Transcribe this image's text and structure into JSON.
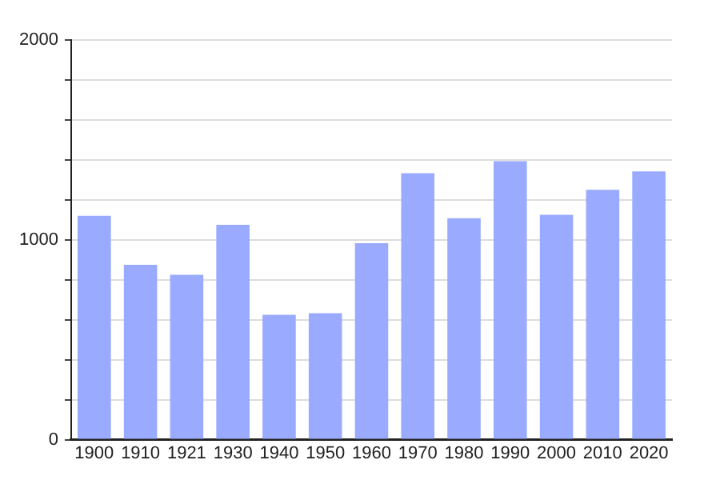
{
  "chart_data": {
    "type": "bar",
    "categories": [
      "1900",
      "1910",
      "1921",
      "1930",
      "1940",
      "1950",
      "1960",
      "1970",
      "1980",
      "1990",
      "2000",
      "2010",
      "2020"
    ],
    "values": [
      1120,
      875,
      825,
      1075,
      625,
      633,
      983,
      1333,
      1108,
      1394,
      1125,
      1250,
      1342
    ],
    "color": "#99aaff",
    "ylim": [
      0,
      2000
    ],
    "yticks": [
      0,
      {
        "value": 200,
        "label": null
      },
      {
        "value": 400,
        "label": null
      },
      {
        "value": 600,
        "label": null
      },
      {
        "value": 800,
        "label": null
      },
      1000,
      {
        "value": 1200,
        "label": null
      },
      {
        "value": 1400,
        "label": null
      },
      {
        "value": 1600,
        "label": null
      },
      {
        "value": 1800,
        "label": null
      },
      2000
    ],
    "grid": true
  }
}
